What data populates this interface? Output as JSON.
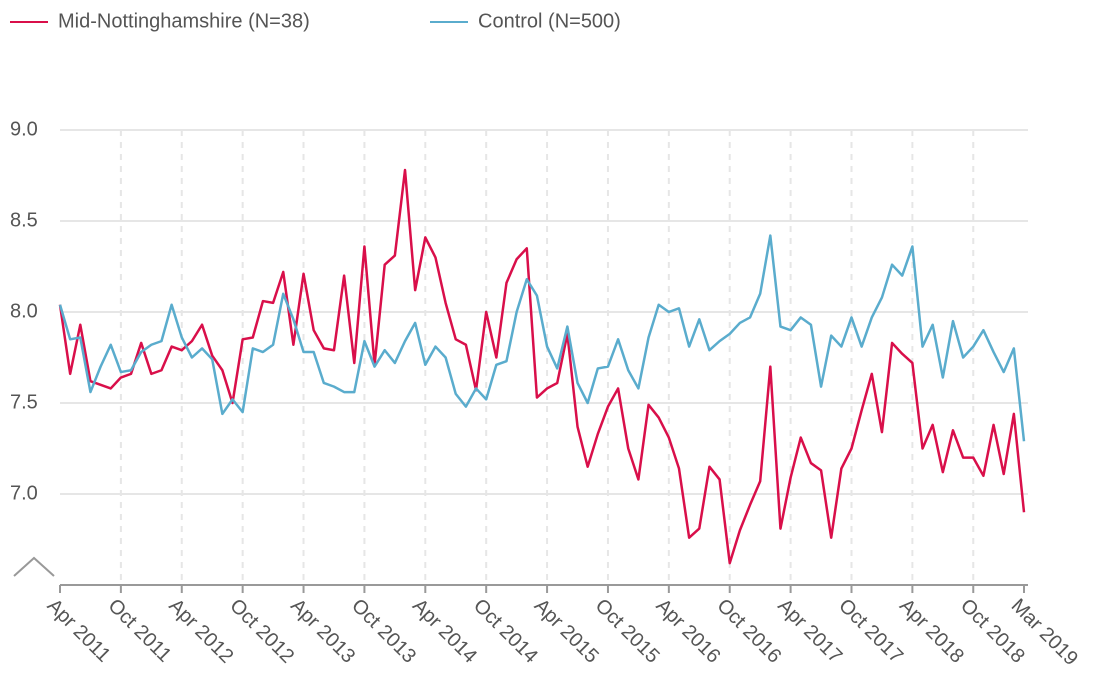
{
  "chart_data": {
    "type": "line",
    "categories": [
      "Apr 2011",
      null,
      null,
      null,
      null,
      null,
      "Oct 2011",
      null,
      null,
      null,
      null,
      null,
      "Apr 2012",
      null,
      null,
      null,
      null,
      null,
      "Oct 2012",
      null,
      null,
      null,
      null,
      null,
      "Apr 2013",
      null,
      null,
      null,
      null,
      null,
      "Oct 2013",
      null,
      null,
      null,
      null,
      null,
      "Apr 2014",
      null,
      null,
      null,
      null,
      null,
      "Oct 2014",
      null,
      null,
      null,
      null,
      null,
      "Apr 2015",
      null,
      null,
      null,
      null,
      null,
      "Oct 2015",
      null,
      null,
      null,
      null,
      null,
      "Apr 2016",
      null,
      null,
      null,
      null,
      null,
      "Oct 2016",
      null,
      null,
      null,
      null,
      null,
      "Apr 2017",
      null,
      null,
      null,
      null,
      null,
      "Oct 2017",
      null,
      null,
      null,
      null,
      null,
      "Apr 2018",
      null,
      null,
      null,
      null,
      null,
      "Oct 2018",
      null,
      null,
      null,
      null,
      "Mar 2019"
    ],
    "series": [
      {
        "name": "Mid-Nottinghamshire (N=38)",
        "color": "#d90f4a",
        "values": [
          8.04,
          7.66,
          7.93,
          7.62,
          7.6,
          7.58,
          7.64,
          7.66,
          7.83,
          7.66,
          7.68,
          7.81,
          7.79,
          7.84,
          7.93,
          7.76,
          7.68,
          7.5,
          7.85,
          7.86,
          8.06,
          8.05,
          8.22,
          7.82,
          8.21,
          7.9,
          7.8,
          7.79,
          8.2,
          7.72,
          8.36,
          7.71,
          8.26,
          8.31,
          8.78,
          8.12,
          8.41,
          8.3,
          8.05,
          7.85,
          7.82,
          7.57,
          8.0,
          7.75,
          8.16,
          8.29,
          8.35,
          7.53,
          7.58,
          7.61,
          7.88,
          7.37,
          7.15,
          7.33,
          7.48,
          7.58,
          7.25,
          7.08,
          7.49,
          7.42,
          7.31,
          7.14,
          6.76,
          6.81,
          7.15,
          7.08,
          6.62,
          6.8,
          6.94,
          7.07,
          7.7,
          6.81,
          7.09,
          7.31,
          7.17,
          7.13,
          6.76,
          7.14,
          7.25,
          7.46,
          7.66,
          7.34,
          7.83,
          7.77,
          7.72,
          7.25,
          7.38,
          7.12,
          7.35,
          7.2,
          7.2,
          7.1,
          7.38,
          7.11,
          7.44,
          6.9
        ]
      },
      {
        "name": "Control (N=500)",
        "color": "#5aaccd",
        "values": [
          8.04,
          7.85,
          7.86,
          7.56,
          7.7,
          7.82,
          7.67,
          7.68,
          7.78,
          7.82,
          7.84,
          8.04,
          7.86,
          7.75,
          7.8,
          7.74,
          7.44,
          7.52,
          7.45,
          7.8,
          7.78,
          7.82,
          8.1,
          7.96,
          7.78,
          7.78,
          7.61,
          7.59,
          7.56,
          7.56,
          7.84,
          7.7,
          7.79,
          7.72,
          7.84,
          7.94,
          7.71,
          7.81,
          7.75,
          7.55,
          7.48,
          7.58,
          7.52,
          7.71,
          7.73,
          8.0,
          8.18,
          8.09,
          7.81,
          7.69,
          7.92,
          7.61,
          7.5,
          7.69,
          7.7,
          7.85,
          7.68,
          7.58,
          7.86,
          8.04,
          8.0,
          8.02,
          7.81,
          7.96,
          7.79,
          7.84,
          7.88,
          7.94,
          7.97,
          8.1,
          8.42,
          7.92,
          7.9,
          7.97,
          7.93,
          7.59,
          7.87,
          7.81,
          7.97,
          7.81,
          7.97,
          8.08,
          8.26,
          8.2,
          8.36,
          7.81,
          7.93,
          7.64,
          7.95,
          7.75,
          7.81,
          7.9,
          7.78,
          7.67,
          7.8,
          7.29
        ]
      }
    ],
    "ylim": [
      6.5,
      9.0
    ],
    "yticks": [
      {
        "value": 7,
        "label": "7.0"
      },
      7.5,
      {
        "value": 8,
        "label": "8.0"
      },
      8.5,
      {
        "value": 9,
        "label": "9.0"
      }
    ],
    "grid": true
  }
}
